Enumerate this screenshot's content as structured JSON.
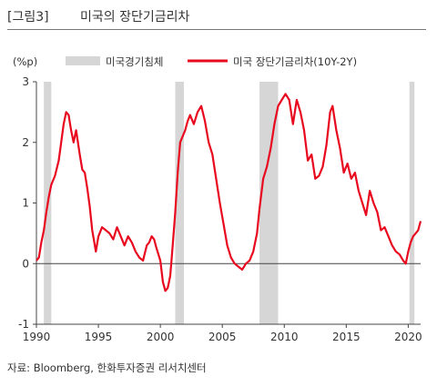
{
  "figure": {
    "number": "[그림3]",
    "title": "미국의 장단기금리차",
    "source": "자료: Bloomberg, 한화투자증권 리서치센터"
  },
  "chart_data": {
    "type": "line",
    "ylabel": "(%p)",
    "ylim": [
      -1,
      3
    ],
    "xlim": [
      1990,
      2021
    ],
    "yticks": [
      "-1",
      "0",
      "1",
      "2",
      "3"
    ],
    "xticks": [
      "1990",
      "1995",
      "2000",
      "2005",
      "2010",
      "2015",
      "2020"
    ],
    "legend_position": "top",
    "recession_name": "미국경기침체",
    "recession_color": "#d6d6d6",
    "line_color": "#e8091f",
    "recessions": [
      [
        1990.6,
        1991.2
      ],
      [
        2001.2,
        2001.9
      ],
      [
        2008.0,
        2009.5
      ],
      [
        2020.1,
        2020.5
      ]
    ],
    "series": [
      {
        "name": "미국 장단기금리차(10Y-2Y)",
        "x": [
          1990.0,
          1990.2,
          1990.4,
          1990.6,
          1990.8,
          1991.0,
          1991.2,
          1991.5,
          1991.8,
          1992.0,
          1992.2,
          1992.4,
          1992.6,
          1992.8,
          1993.0,
          1993.2,
          1993.5,
          1993.7,
          1993.9,
          1994.1,
          1994.3,
          1994.5,
          1994.8,
          1995.0,
          1995.3,
          1995.6,
          1995.9,
          1996.2,
          1996.5,
          1996.8,
          1997.1,
          1997.4,
          1997.7,
          1998.0,
          1998.3,
          1998.6,
          1998.9,
          1999.1,
          1999.3,
          1999.5,
          1999.7,
          2000.0,
          2000.2,
          2000.4,
          2000.6,
          2000.8,
          2001.0,
          2001.2,
          2001.4,
          2001.6,
          2001.8,
          2002.0,
          2002.2,
          2002.4,
          2002.7,
          2003.0,
          2003.3,
          2003.6,
          2003.9,
          2004.2,
          2004.5,
          2004.8,
          2005.1,
          2005.4,
          2005.7,
          2006.0,
          2006.3,
          2006.6,
          2006.9,
          2007.2,
          2007.5,
          2007.8,
          2008.0,
          2008.3,
          2008.6,
          2008.9,
          2009.2,
          2009.5,
          2009.8,
          2010.1,
          2010.4,
          2010.7,
          2011.0,
          2011.3,
          2011.6,
          2011.9,
          2012.2,
          2012.5,
          2012.8,
          2013.1,
          2013.4,
          2013.7,
          2013.9,
          2014.2,
          2014.5,
          2014.8,
          2015.1,
          2015.4,
          2015.7,
          2016.0,
          2016.3,
          2016.6,
          2016.9,
          2017.2,
          2017.5,
          2017.8,
          2018.1,
          2018.4,
          2018.7,
          2019.0,
          2019.3,
          2019.6,
          2019.8,
          2020.0,
          2020.2,
          2020.4,
          2020.6,
          2020.8,
          2021.0
        ],
        "values": [
          0.05,
          0.1,
          0.35,
          0.55,
          0.85,
          1.1,
          1.3,
          1.45,
          1.7,
          2.0,
          2.3,
          2.5,
          2.45,
          2.2,
          2.0,
          2.2,
          1.8,
          1.55,
          1.5,
          1.25,
          0.95,
          0.55,
          0.2,
          0.45,
          0.6,
          0.55,
          0.5,
          0.4,
          0.6,
          0.45,
          0.3,
          0.45,
          0.35,
          0.2,
          0.1,
          0.05,
          0.3,
          0.35,
          0.45,
          0.4,
          0.25,
          0.05,
          -0.3,
          -0.45,
          -0.4,
          -0.2,
          0.3,
          0.85,
          1.5,
          2.0,
          2.1,
          2.2,
          2.35,
          2.45,
          2.3,
          2.5,
          2.6,
          2.35,
          2.0,
          1.8,
          1.4,
          1.0,
          0.65,
          0.3,
          0.1,
          0.0,
          -0.05,
          -0.1,
          0.0,
          0.05,
          0.2,
          0.5,
          0.9,
          1.4,
          1.6,
          1.9,
          2.3,
          2.6,
          2.7,
          2.8,
          2.7,
          2.3,
          2.7,
          2.5,
          2.2,
          1.7,
          1.8,
          1.4,
          1.45,
          1.6,
          1.95,
          2.5,
          2.6,
          2.2,
          1.9,
          1.5,
          1.65,
          1.4,
          1.5,
          1.2,
          1.0,
          0.8,
          1.2,
          1.0,
          0.85,
          0.55,
          0.6,
          0.45,
          0.3,
          0.2,
          0.15,
          0.05,
          0.0,
          0.2,
          0.35,
          0.45,
          0.5,
          0.55,
          0.7
        ]
      }
    ]
  }
}
